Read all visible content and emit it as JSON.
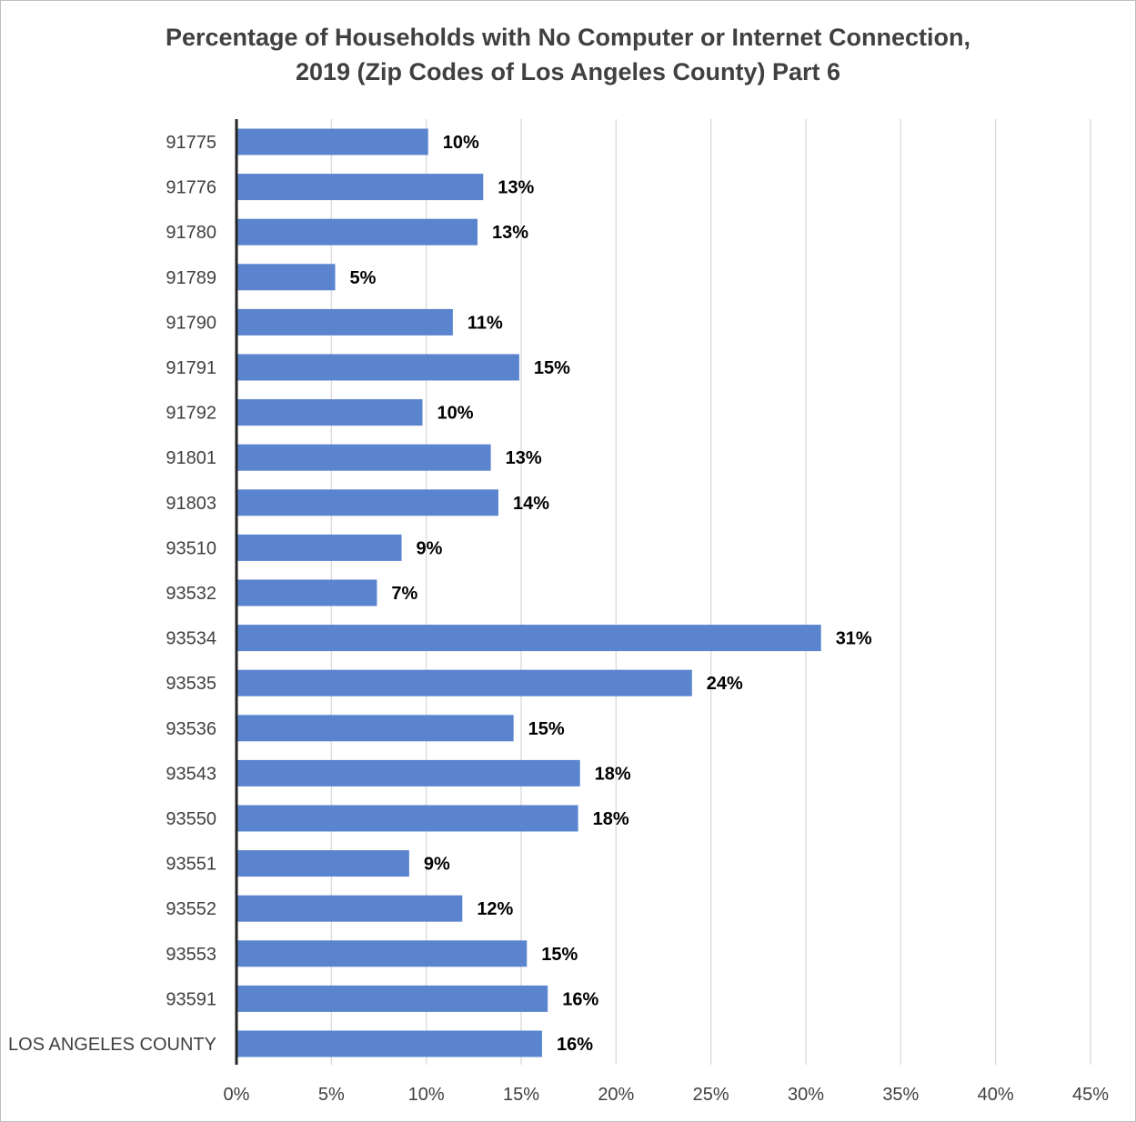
{
  "chart_data": {
    "type": "bar",
    "orientation": "horizontal",
    "title_line1": "Percentage of Households with No Computer or Internet Connection,",
    "title_line2": "2019 (Zip Codes of Los Angeles County) Part 6",
    "categories": [
      "91775",
      "91776",
      "91780",
      "91789",
      "91790",
      "91791",
      "91792",
      "91801",
      "91803",
      "93510",
      "93532",
      "93534",
      "93535",
      "93536",
      "93543",
      "93550",
      "93551",
      "93552",
      "93553",
      "93591",
      "LOS ANGELES COUNTY"
    ],
    "values": [
      10.1,
      13.0,
      12.7,
      5.2,
      11.4,
      14.9,
      9.8,
      13.4,
      13.8,
      8.7,
      7.4,
      30.8,
      24.0,
      14.6,
      18.1,
      18.0,
      9.1,
      11.9,
      15.3,
      16.4,
      16.1
    ],
    "data_labels": [
      "10%",
      "13%",
      "13%",
      "5%",
      "11%",
      "15%",
      "10%",
      "13%",
      "14%",
      "9%",
      "7%",
      "31%",
      "24%",
      "15%",
      "18%",
      "18%",
      "9%",
      "12%",
      "15%",
      "16%",
      "16%"
    ],
    "x_ticks": [
      "0%",
      "5%",
      "10%",
      "15%",
      "20%",
      "25%",
      "30%",
      "35%",
      "40%",
      "45%"
    ],
    "xlim": [
      0,
      45
    ],
    "grid": "vertical",
    "bar_color": "#5b84cf"
  }
}
